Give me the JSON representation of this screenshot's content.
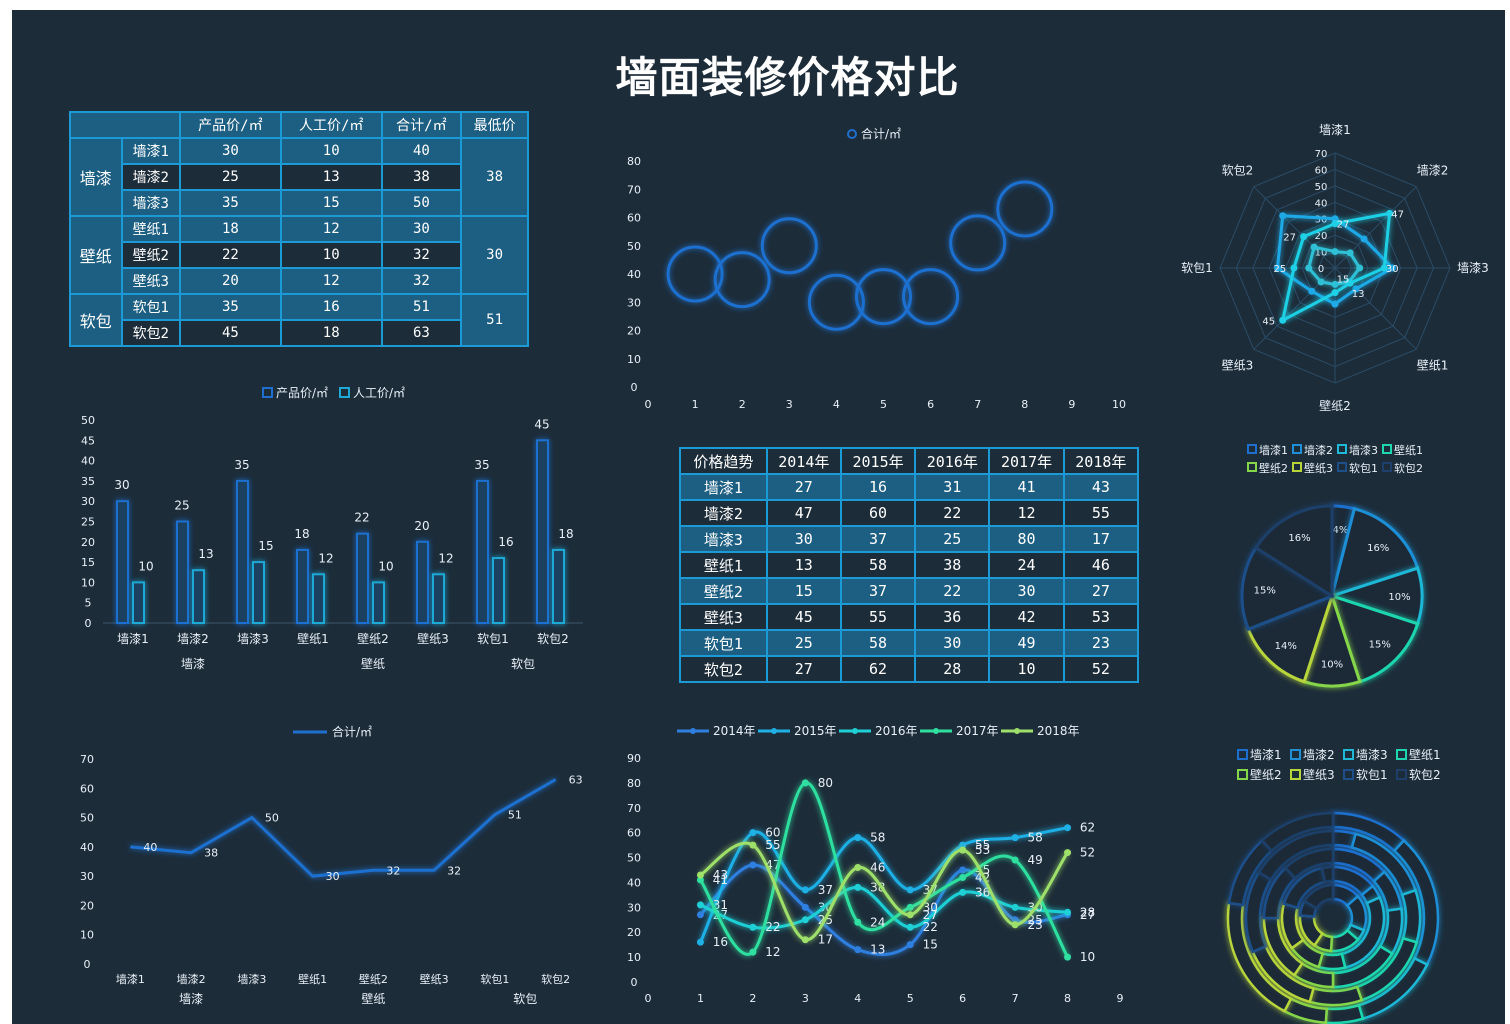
{
  "title": "墙面装修价格对比",
  "price_table": {
    "headers": [
      "",
      "产品价/㎡",
      "人工价/㎡",
      "合计/㎡",
      "最低价"
    ],
    "groups": [
      {
        "name": "墙漆",
        "min": "38",
        "rows": [
          [
            "墙漆1",
            "30",
            "10",
            "40"
          ],
          [
            "墙漆2",
            "25",
            "13",
            "38"
          ],
          [
            "墙漆3",
            "35",
            "15",
            "50"
          ]
        ]
      },
      {
        "name": "壁纸",
        "min": "30",
        "rows": [
          [
            "壁纸1",
            "18",
            "12",
            "30"
          ],
          [
            "壁纸2",
            "22",
            "10",
            "32"
          ],
          [
            "壁纸3",
            "20",
            "12",
            "32"
          ]
        ]
      },
      {
        "name": "软包",
        "min": "51",
        "rows": [
          [
            "软包1",
            "35",
            "16",
            "51"
          ],
          [
            "软包2",
            "45",
            "18",
            "63"
          ]
        ]
      }
    ]
  },
  "trend_table": {
    "headers": [
      "价格趋势",
      "2014年",
      "2015年",
      "2016年",
      "2017年",
      "2018年"
    ],
    "rows": [
      [
        "墙漆1",
        "27",
        "16",
        "31",
        "41",
        "43"
      ],
      [
        "墙漆2",
        "47",
        "60",
        "22",
        "12",
        "55"
      ],
      [
        "墙漆3",
        "30",
        "37",
        "25",
        "80",
        "17"
      ],
      [
        "壁纸1",
        "13",
        "58",
        "38",
        "24",
        "46"
      ],
      [
        "壁纸2",
        "15",
        "37",
        "22",
        "30",
        "27"
      ],
      [
        "壁纸3",
        "45",
        "55",
        "36",
        "42",
        "53"
      ],
      [
        "软包1",
        "25",
        "58",
        "30",
        "49",
        "23"
      ],
      [
        "软包2",
        "27",
        "62",
        "28",
        "10",
        "52"
      ]
    ]
  },
  "chart_data": [
    {
      "id": "bubble",
      "type": "scatter",
      "legend": [
        "合计/㎡"
      ],
      "x": [
        1,
        2,
        3,
        4,
        5,
        6,
        7,
        8
      ],
      "values": [
        40,
        38,
        50,
        30,
        32,
        32,
        51,
        63
      ],
      "xlim": [
        0,
        10
      ],
      "ylim": [
        0,
        80
      ],
      "xticks": [
        0,
        1,
        2,
        3,
        4,
        5,
        6,
        7,
        8,
        9,
        10
      ],
      "yticks": [
        0,
        10,
        20,
        30,
        40,
        50,
        60,
        70,
        80
      ],
      "color": "#1f6fcf"
    },
    {
      "id": "radar",
      "type": "radar",
      "axes": [
        "墙漆1",
        "墙漆2",
        "墙漆3",
        "壁纸1",
        "壁纸2",
        "壁纸3",
        "软包1",
        "软包2"
      ],
      "rings": [
        0,
        10,
        20,
        30,
        40,
        50,
        60,
        70
      ],
      "series": [
        {
          "values": [
            30,
            25,
            35,
            18,
            22,
            20,
            35,
            45
          ]
        },
        {
          "values": [
            10,
            13,
            15,
            12,
            10,
            12,
            16,
            18
          ]
        },
        {
          "values": [
            27,
            47,
            30,
            13,
            15,
            45,
            25,
            27
          ]
        }
      ],
      "labels": [
        {
          "axis": 0,
          "value": "27"
        },
        {
          "axis": 1,
          "value": "47"
        },
        {
          "axis": 2,
          "value": "30"
        },
        {
          "axis": 3,
          "value": "13"
        },
        {
          "axis": 4,
          "value": "15"
        },
        {
          "axis": 5,
          "value": "45"
        },
        {
          "axis": 6,
          "value": "25"
        },
        {
          "axis": 7,
          "value": "27"
        }
      ]
    },
    {
      "id": "bars",
      "type": "bar",
      "legend": [
        "产品价/㎡",
        "人工价/㎡"
      ],
      "categories": [
        "墙漆1",
        "墙漆2",
        "墙漆3",
        "壁纸1",
        "壁纸2",
        "壁纸3",
        "软包1",
        "软包2"
      ],
      "groups": [
        {
          "name": "墙漆",
          "span": [
            0,
            2
          ]
        },
        {
          "name": "壁纸",
          "span": [
            3,
            5
          ]
        },
        {
          "name": "软包",
          "span": [
            6,
            7
          ]
        }
      ],
      "series": [
        {
          "name": "产品价/㎡",
          "values": [
            30,
            25,
            35,
            18,
            22,
            20,
            35,
            45
          ],
          "color": "#1f6fcf"
        },
        {
          "name": "人工价/㎡",
          "values": [
            10,
            13,
            15,
            12,
            10,
            12,
            16,
            18
          ],
          "color": "#1fa9d6"
        }
      ],
      "ylim": [
        0,
        50
      ],
      "yticks": [
        0,
        5,
        10,
        15,
        20,
        25,
        30,
        35,
        40,
        45,
        50
      ]
    },
    {
      "id": "pie",
      "type": "pie",
      "legend": [
        "墙漆1",
        "墙漆2",
        "墙漆3",
        "壁纸1",
        "壁纸2",
        "壁纸3",
        "软包1",
        "软包2"
      ],
      "values": [
        4,
        16,
        10,
        15,
        10,
        14,
        15,
        16
      ],
      "labels": [
        "4%",
        "16%",
        "10%",
        "15%",
        "10%",
        "14%",
        "15%",
        "16%"
      ],
      "colors": [
        "#1f6fcf",
        "#1f8fd6",
        "#1fb8d6",
        "#1fd6b0",
        "#86d64a",
        "#b8d63a",
        "#1f4f8a",
        "#1f3f6a"
      ]
    },
    {
      "id": "line-total",
      "type": "line",
      "legend": [
        "合计/㎡"
      ],
      "categories": [
        "墙漆1",
        "墙漆2",
        "墙漆3",
        "壁纸1",
        "壁纸2",
        "壁纸3",
        "软包1",
        "软包2"
      ],
      "groups": [
        {
          "name": "墙漆",
          "span": [
            0,
            2
          ]
        },
        {
          "name": "壁纸",
          "span": [
            3,
            5
          ]
        },
        {
          "name": "软包",
          "span": [
            6,
            7
          ]
        }
      ],
      "values": [
        40,
        38,
        50,
        30,
        32,
        32,
        51,
        63
      ],
      "ylim": [
        0,
        70
      ],
      "yticks": [
        0,
        10,
        20,
        30,
        40,
        50,
        60,
        70
      ],
      "color": "#1f6fcf"
    },
    {
      "id": "line-trend",
      "type": "line",
      "x": [
        1,
        2,
        3,
        4,
        5,
        6,
        7,
        8
      ],
      "xlim": [
        0,
        9
      ],
      "ylim": [
        0,
        90
      ],
      "xticks": [
        0,
        1,
        2,
        3,
        4,
        5,
        6,
        7,
        8,
        9
      ],
      "yticks": [
        0,
        10,
        20,
        30,
        40,
        50,
        60,
        70,
        80,
        90
      ],
      "series": [
        {
          "name": "2014年",
          "values": [
            27,
            47,
            30,
            13,
            15,
            45,
            25,
            27
          ],
          "color": "#2f7fe0"
        },
        {
          "name": "2015年",
          "values": [
            16,
            60,
            37,
            58,
            37,
            55,
            58,
            62
          ],
          "color": "#1fb0e6"
        },
        {
          "name": "2016年",
          "values": [
            31,
            22,
            25,
            38,
            22,
            36,
            30,
            28
          ],
          "color": "#1fd0d6"
        },
        {
          "name": "2017年",
          "values": [
            41,
            12,
            80,
            24,
            30,
            42,
            49,
            10
          ],
          "color": "#2fe0a0"
        },
        {
          "name": "2018年",
          "values": [
            43,
            55,
            17,
            46,
            27,
            53,
            23,
            52
          ],
          "color": "#9ee06a"
        }
      ]
    },
    {
      "id": "rings",
      "type": "doughnut",
      "legend": [
        "墙漆1",
        "墙漆2",
        "墙漆3",
        "壁纸1",
        "壁纸2",
        "壁纸3",
        "软包1",
        "软包2"
      ],
      "series": [
        {
          "values": [
            27,
            47,
            30,
            13,
            15,
            45,
            25,
            27
          ]
        },
        {
          "values": [
            16,
            60,
            37,
            58,
            37,
            55,
            58,
            62
          ]
        },
        {
          "values": [
            31,
            22,
            25,
            38,
            22,
            36,
            30,
            28
          ]
        },
        {
          "values": [
            41,
            12,
            80,
            24,
            30,
            42,
            49,
            10
          ]
        },
        {
          "values": [
            43,
            55,
            17,
            46,
            27,
            53,
            23,
            52
          ]
        }
      ],
      "colors": [
        "#1f6fcf",
        "#1f8fd6",
        "#1fb8d6",
        "#1fd6b0",
        "#86d64a",
        "#b8d63a",
        "#1f4f8a",
        "#1f3f6a"
      ]
    }
  ]
}
